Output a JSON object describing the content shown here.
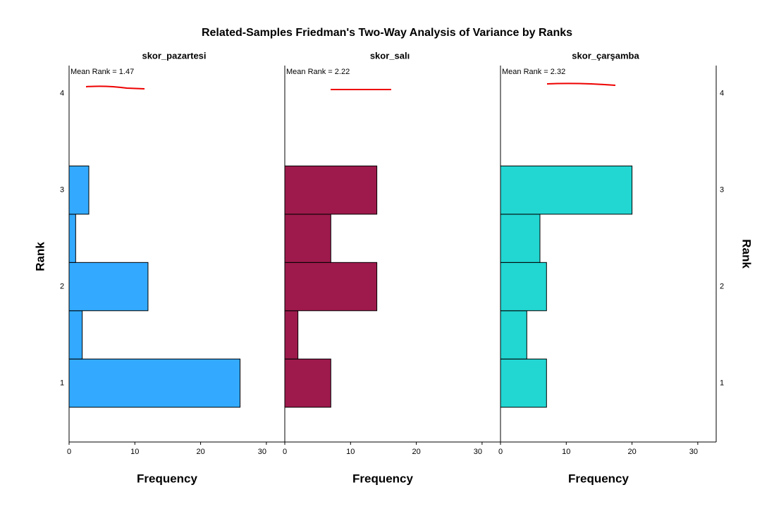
{
  "title": "Related-Samples Friedman's Two-Way Analysis of Variance by Ranks",
  "ylabel": "Rank",
  "ylim": [
    0.39,
    4.29
  ],
  "yticks": [
    1,
    2,
    3,
    4
  ],
  "chart_data": [
    {
      "type": "histogram",
      "orientation": "horizontal",
      "title": "skor_pazartesi",
      "annotation": "Mean Rank = 1.47",
      "xlabel": "Frequency",
      "bins": [
        0.75,
        1.25,
        1.75,
        2.25,
        2.75,
        3.25
      ],
      "values": [
        26,
        2,
        12,
        1,
        3
      ],
      "color": "#33aaff",
      "xlim": [
        0,
        32.8
      ],
      "xticks": [
        0,
        10,
        20,
        30
      ]
    },
    {
      "type": "histogram",
      "orientation": "horizontal",
      "title": "skor_salı",
      "annotation": "Mean Rank = 2.22",
      "xlabel": "Frequency",
      "bins": [
        0.75,
        1.25,
        1.75,
        2.25,
        2.75,
        3.25
      ],
      "values": [
        7,
        2,
        14,
        7,
        14
      ],
      "color": "#9e1a4c",
      "xlim": [
        0,
        32.8
      ],
      "xticks": [
        0,
        10,
        20,
        30
      ]
    },
    {
      "type": "histogram",
      "orientation": "horizontal",
      "title": "skor_çarşamba",
      "annotation": "Mean Rank = 2.32",
      "xlabel": "Frequency",
      "bins": [
        0.75,
        1.25,
        1.75,
        2.25,
        2.75,
        3.25
      ],
      "values": [
        7,
        4,
        7,
        6,
        20
      ],
      "color": "#22d6d2",
      "xlim": [
        0,
        32.8
      ],
      "xticks": [
        0,
        10,
        20,
        30
      ]
    }
  ]
}
